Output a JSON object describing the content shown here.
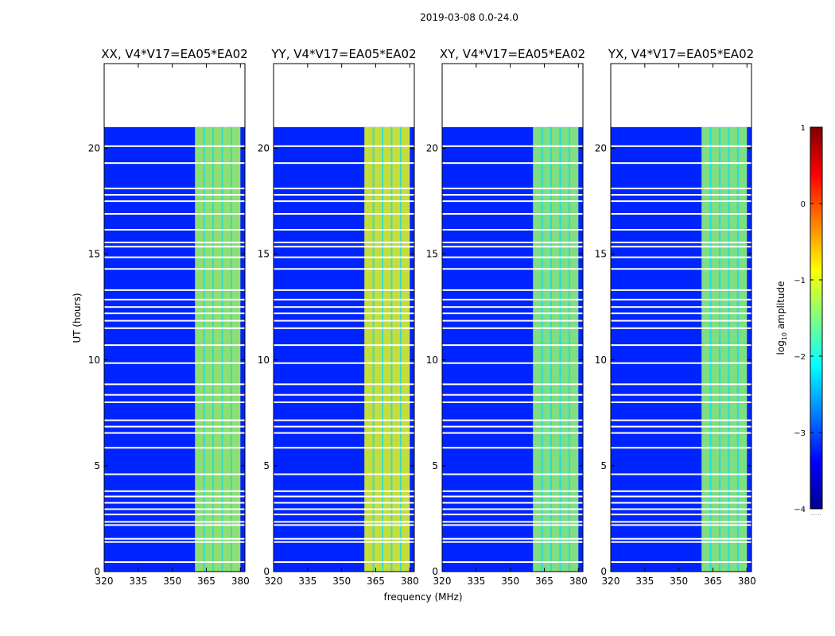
{
  "chart_data": {
    "type": "heatmap",
    "title": "2019-03-08 0.0-24.0",
    "xlabel": "frequency (MHz)",
    "ylabel": "UT (hours)",
    "xlim": [
      320,
      382
    ],
    "ylim": [
      0,
      24
    ],
    "xticks": [
      320,
      335,
      350,
      365,
      380
    ],
    "yticks": [
      0,
      5,
      10,
      15,
      20
    ],
    "data_end_hour": 21.0,
    "bright_band_mhz": [
      360,
      380
    ],
    "panels": [
      {
        "title": "XX, V4*V17=EA05*EA02",
        "polarization": "XX",
        "band_log_amp": -1.3
      },
      {
        "title": "YY, V4*V17=EA05*EA02",
        "polarization": "YY",
        "band_log_amp": -1.0
      },
      {
        "title": "XY, V4*V17=EA05*EA02",
        "polarization": "XY",
        "band_log_amp": -1.4
      },
      {
        "title": "YX, V4*V17=EA05*EA02",
        "polarization": "YX",
        "band_log_amp": -1.4
      }
    ],
    "background_log_amp": -3.2,
    "flagged_gap_hours": [
      0.45,
      1.4,
      1.55,
      2.2,
      2.35,
      2.7,
      2.95,
      3.25,
      3.55,
      3.8,
      4.6,
      5.85,
      6.55,
      6.85,
      7.15,
      8.0,
      8.35,
      8.85,
      9.85,
      10.7,
      11.5,
      11.85,
      12.2,
      12.5,
      12.85,
      13.3,
      14.3,
      14.85,
      15.35,
      15.55,
      16.15,
      16.9,
      17.5,
      17.8,
      18.1,
      19.3,
      20.1
    ],
    "colorbar": {
      "label_prefix": "log",
      "label_sub": "10",
      "label_suffix": " amplitude",
      "min": -4,
      "max": 1,
      "ticks": [
        1,
        0,
        -1,
        -2,
        -3,
        -4
      ],
      "tick_labels": [
        "1",
        "0",
        "−1",
        "−2",
        "−3",
        "−4"
      ],
      "cmap": "jet",
      "footer_text": "......"
    }
  }
}
